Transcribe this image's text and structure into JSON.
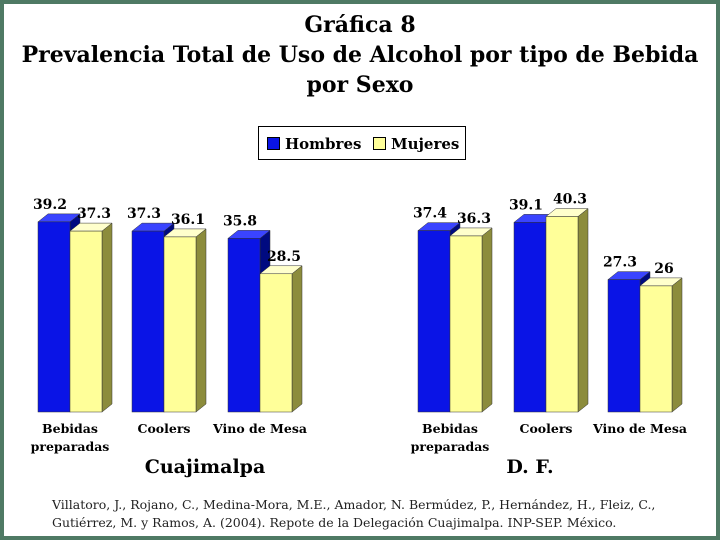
{
  "title": {
    "line1": "Gráfica 8",
    "line2": "Prevalencia Total de Uso de Alcohol por tipo de Bebida",
    "line3": "por Sexo"
  },
  "legend": {
    "hombres": "Hombres",
    "mujeres": "Mujeres"
  },
  "colors": {
    "hombres": "#0a14e6",
    "hombres_side": "#000a80",
    "hombres_top": "#3a44ff",
    "mujeres": "#ffff99",
    "mujeres_side": "#8c8c3c",
    "mujeres_top": "#ffffcc",
    "frame": "#4f7a64"
  },
  "chart_data": [
    {
      "type": "bar",
      "group_label": "Cuajimalpa",
      "categories": [
        "Bebidas preparadas",
        "Coolers",
        "Vino de Mesa"
      ],
      "category_lines": [
        [
          "Bebidas",
          "preparadas"
        ],
        [
          "Coolers"
        ],
        [
          "Vino de Mesa"
        ]
      ],
      "series": [
        {
          "name": "Hombres",
          "values": [
            39.2,
            37.3,
            35.8
          ],
          "labels": [
            "39.2",
            "37.3",
            "35.8"
          ]
        },
        {
          "name": "Mujeres",
          "values": [
            37.3,
            36.1,
            28.5
          ],
          "labels": [
            "37.3",
            "36.1",
            "28.5"
          ]
        }
      ]
    },
    {
      "type": "bar",
      "group_label": "D. F.",
      "categories": [
        "Bebidas preparadas",
        "Coolers",
        "Vino de Mesa"
      ],
      "category_lines": [
        [
          "Bebidas",
          "preparadas"
        ],
        [
          "Coolers"
        ],
        [
          "Vino de Mesa"
        ]
      ],
      "series": [
        {
          "name": "Hombres",
          "values": [
            37.4,
            39.1,
            27.3
          ],
          "labels": [
            "37.4",
            "39.1",
            "27.3"
          ]
        },
        {
          "name": "Mujeres",
          "values": [
            36.3,
            40.3,
            26
          ],
          "labels": [
            "36.3",
            "40.3",
            "26"
          ]
        }
      ]
    }
  ],
  "citation": "Villatoro, J., Rojano, C., Medina-Mora, M.E., Amador, N. Bermúdez, P., Hernández, H., Fleiz, C., Gutiérrez, M. y Ramos, A. (2004). Repote de la Delegación Cuajimalpa. INP-SEP. México."
}
